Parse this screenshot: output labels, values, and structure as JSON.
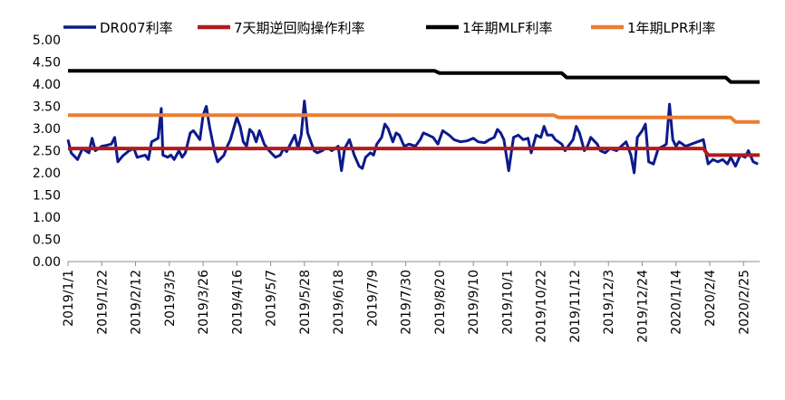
{
  "chart_data": {
    "type": "line",
    "ylim": [
      0,
      5
    ],
    "grid": false,
    "legend_position": "top",
    "y_ticks": [
      "0.00",
      "0.50",
      "1.00",
      "1.50",
      "2.00",
      "2.50",
      "3.00",
      "3.50",
      "4.00",
      "4.50",
      "5.00"
    ],
    "x_tick_labels": [
      "2019/1/1",
      "2019/1/22",
      "2019/2/12",
      "2019/3/5",
      "2019/3/26",
      "2019/4/16",
      "2019/5/7",
      "2019/5/28",
      "2019/6/18",
      "2019/7/9",
      "2019/7/30",
      "2019/8/20",
      "2019/9/10",
      "2019/10/1",
      "2019/10/22",
      "2019/11/12",
      "2019/12/3",
      "2019/12/24",
      "2020/1/14",
      "2020/2/4",
      "2020/2/25"
    ],
    "x_range": [
      "2019-01-01",
      "2020-03-06"
    ],
    "series": [
      {
        "name": "DR007利率",
        "color": "#0d1a8c",
        "points": [
          [
            "2019-01-01",
            2.75
          ],
          [
            "2019-01-03",
            2.45
          ],
          [
            "2019-01-07",
            2.3
          ],
          [
            "2019-01-10",
            2.55
          ],
          [
            "2019-01-14",
            2.45
          ],
          [
            "2019-01-16",
            2.78
          ],
          [
            "2019-01-18",
            2.5
          ],
          [
            "2019-01-22",
            2.6
          ],
          [
            "2019-01-25",
            2.62
          ],
          [
            "2019-01-28",
            2.65
          ],
          [
            "2019-01-30",
            2.8
          ],
          [
            "2019-02-01",
            2.25
          ],
          [
            "2019-02-04",
            2.38
          ],
          [
            "2019-02-08",
            2.5
          ],
          [
            "2019-02-11",
            2.55
          ],
          [
            "2019-02-13",
            2.35
          ],
          [
            "2019-02-18",
            2.4
          ],
          [
            "2019-02-20",
            2.3
          ],
          [
            "2019-02-22",
            2.7
          ],
          [
            "2019-02-26",
            2.78
          ],
          [
            "2019-02-28",
            3.45
          ],
          [
            "2019-03-01",
            2.4
          ],
          [
            "2019-03-04",
            2.35
          ],
          [
            "2019-03-06",
            2.4
          ],
          [
            "2019-03-08",
            2.3
          ],
          [
            "2019-03-11",
            2.5
          ],
          [
            "2019-03-13",
            2.35
          ],
          [
            "2019-03-15",
            2.45
          ],
          [
            "2019-03-18",
            2.9
          ],
          [
            "2019-03-20",
            2.95
          ],
          [
            "2019-03-22",
            2.85
          ],
          [
            "2019-03-24",
            2.75
          ],
          [
            "2019-03-26",
            3.3
          ],
          [
            "2019-03-28",
            3.5
          ],
          [
            "2019-03-30",
            3.05
          ],
          [
            "2019-04-02",
            2.5
          ],
          [
            "2019-04-04",
            2.25
          ],
          [
            "2019-04-08",
            2.4
          ],
          [
            "2019-04-10",
            2.6
          ],
          [
            "2019-04-12",
            2.75
          ],
          [
            "2019-04-16",
            3.25
          ],
          [
            "2019-04-18",
            3.05
          ],
          [
            "2019-04-20",
            2.7
          ],
          [
            "2019-04-22",
            2.6
          ],
          [
            "2019-04-24",
            2.98
          ],
          [
            "2019-04-26",
            2.9
          ],
          [
            "2019-04-28",
            2.7
          ],
          [
            "2019-04-30",
            2.95
          ],
          [
            "2019-05-03",
            2.65
          ],
          [
            "2019-05-06",
            2.5
          ],
          [
            "2019-05-10",
            2.35
          ],
          [
            "2019-05-13",
            2.4
          ],
          [
            "2019-05-15",
            2.55
          ],
          [
            "2019-05-17",
            2.48
          ],
          [
            "2019-05-20",
            2.7
          ],
          [
            "2019-05-22",
            2.85
          ],
          [
            "2019-05-24",
            2.55
          ],
          [
            "2019-05-26",
            2.85
          ],
          [
            "2019-05-28",
            3.62
          ],
          [
            "2019-05-30",
            2.9
          ],
          [
            "2019-06-03",
            2.5
          ],
          [
            "2019-06-05",
            2.45
          ],
          [
            "2019-06-08",
            2.5
          ],
          [
            "2019-06-10",
            2.55
          ],
          [
            "2019-06-12",
            2.55
          ],
          [
            "2019-06-14",
            2.5
          ],
          [
            "2019-06-18",
            2.6
          ],
          [
            "2019-06-20",
            2.05
          ],
          [
            "2019-06-22",
            2.55
          ],
          [
            "2019-06-25",
            2.75
          ],
          [
            "2019-06-28",
            2.4
          ],
          [
            "2019-07-01",
            2.15
          ],
          [
            "2019-07-03",
            2.1
          ],
          [
            "2019-07-05",
            2.35
          ],
          [
            "2019-07-08",
            2.45
          ],
          [
            "2019-07-10",
            2.4
          ],
          [
            "2019-07-12",
            2.65
          ],
          [
            "2019-07-15",
            2.8
          ],
          [
            "2019-07-17",
            3.1
          ],
          [
            "2019-07-19",
            3.0
          ],
          [
            "2019-07-22",
            2.7
          ],
          [
            "2019-07-24",
            2.9
          ],
          [
            "2019-07-26",
            2.85
          ],
          [
            "2019-07-29",
            2.6
          ],
          [
            "2019-08-01",
            2.65
          ],
          [
            "2019-08-05",
            2.6
          ],
          [
            "2019-08-08",
            2.75
          ],
          [
            "2019-08-10",
            2.9
          ],
          [
            "2019-08-13",
            2.85
          ],
          [
            "2019-08-16",
            2.8
          ],
          [
            "2019-08-19",
            2.65
          ],
          [
            "2019-08-22",
            2.95
          ],
          [
            "2019-08-26",
            2.85
          ],
          [
            "2019-08-29",
            2.75
          ],
          [
            "2019-09-02",
            2.7
          ],
          [
            "2019-09-06",
            2.72
          ],
          [
            "2019-09-10",
            2.78
          ],
          [
            "2019-09-13",
            2.7
          ],
          [
            "2019-09-17",
            2.68
          ],
          [
            "2019-09-20",
            2.75
          ],
          [
            "2019-09-23",
            2.8
          ],
          [
            "2019-09-25",
            2.98
          ],
          [
            "2019-09-27",
            2.9
          ],
          [
            "2019-09-29",
            2.75
          ],
          [
            "2019-10-02",
            2.05
          ],
          [
            "2019-10-05",
            2.8
          ],
          [
            "2019-10-08",
            2.85
          ],
          [
            "2019-10-11",
            2.75
          ],
          [
            "2019-10-14",
            2.78
          ],
          [
            "2019-10-16",
            2.45
          ],
          [
            "2019-10-19",
            2.85
          ],
          [
            "2019-10-22",
            2.8
          ],
          [
            "2019-10-24",
            3.05
          ],
          [
            "2019-10-26",
            2.85
          ],
          [
            "2019-10-29",
            2.85
          ],
          [
            "2019-10-31",
            2.75
          ],
          [
            "2019-11-04",
            2.65
          ],
          [
            "2019-11-06",
            2.5
          ],
          [
            "2019-11-08",
            2.6
          ],
          [
            "2019-11-11",
            2.75
          ],
          [
            "2019-11-13",
            3.05
          ],
          [
            "2019-11-15",
            2.9
          ],
          [
            "2019-11-18",
            2.5
          ],
          [
            "2019-11-20",
            2.6
          ],
          [
            "2019-11-22",
            2.8
          ],
          [
            "2019-11-26",
            2.65
          ],
          [
            "2019-11-28",
            2.5
          ],
          [
            "2019-12-01",
            2.45
          ],
          [
            "2019-12-04",
            2.55
          ],
          [
            "2019-12-08",
            2.5
          ],
          [
            "2019-12-11",
            2.6
          ],
          [
            "2019-12-14",
            2.7
          ],
          [
            "2019-12-17",
            2.4
          ],
          [
            "2019-12-19",
            2.0
          ],
          [
            "2019-12-21",
            2.8
          ],
          [
            "2019-12-24",
            2.95
          ],
          [
            "2019-12-26",
            3.1
          ],
          [
            "2019-12-28",
            2.25
          ],
          [
            "2019-12-31",
            2.2
          ],
          [
            "2020-01-03",
            2.55
          ],
          [
            "2020-01-06",
            2.6
          ],
          [
            "2020-01-08",
            2.65
          ],
          [
            "2020-01-10",
            3.55
          ],
          [
            "2020-01-12",
            2.75
          ],
          [
            "2020-01-14",
            2.6
          ],
          [
            "2020-01-16",
            2.7
          ],
          [
            "2020-01-20",
            2.6
          ],
          [
            "2020-01-31",
            2.75
          ],
          [
            "2020-02-03",
            2.2
          ],
          [
            "2020-02-06",
            2.3
          ],
          [
            "2020-02-09",
            2.25
          ],
          [
            "2020-02-12",
            2.3
          ],
          [
            "2020-02-15",
            2.2
          ],
          [
            "2020-02-17",
            2.35
          ],
          [
            "2020-02-20",
            2.15
          ],
          [
            "2020-02-23",
            2.4
          ],
          [
            "2020-02-26",
            2.35
          ],
          [
            "2020-02-28",
            2.5
          ],
          [
            "2020-03-02",
            2.25
          ],
          [
            "2020-03-05",
            2.2
          ]
        ]
      },
      {
        "name": "7天期逆回购操作利率",
        "color": "#b31b1b",
        "points": [
          [
            "2019-01-01",
            2.55
          ],
          [
            "2020-01-31",
            2.55
          ],
          [
            "2020-02-03",
            2.4
          ],
          [
            "2020-03-06",
            2.4
          ]
        ]
      },
      {
        "name": "1年期MLF利率",
        "color": "#000000",
        "points": [
          [
            "2019-01-01",
            4.3
          ],
          [
            "2019-08-17",
            4.3
          ],
          [
            "2019-08-20",
            4.25
          ],
          [
            "2019-11-04",
            4.25
          ],
          [
            "2019-11-07",
            4.15
          ],
          [
            "2020-02-14",
            4.15
          ],
          [
            "2020-02-17",
            4.05
          ],
          [
            "2020-03-06",
            4.05
          ]
        ]
      },
      {
        "name": "1年期LPR利率",
        "color": "#ed7d31",
        "points": [
          [
            "2019-01-01",
            3.3
          ],
          [
            "2019-10-30",
            3.3
          ],
          [
            "2019-11-02",
            3.25
          ],
          [
            "2020-02-17",
            3.25
          ],
          [
            "2020-02-20",
            3.15
          ],
          [
            "2020-03-06",
            3.15
          ]
        ]
      }
    ]
  }
}
